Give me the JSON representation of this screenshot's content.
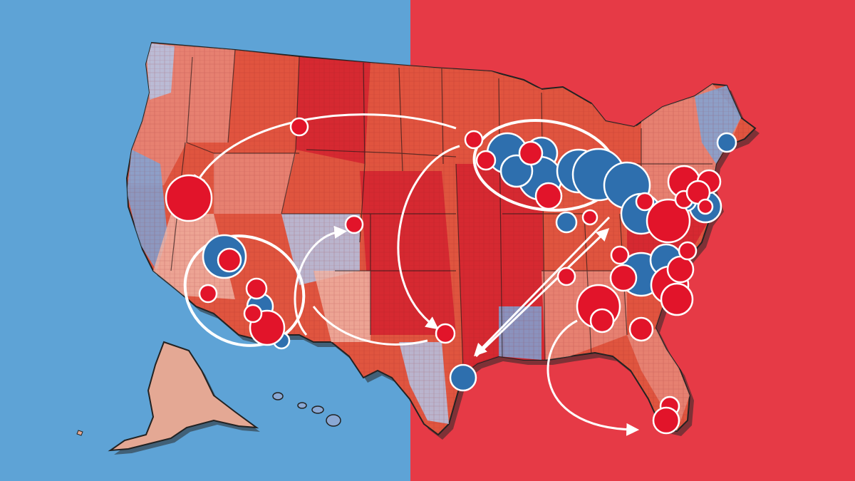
{
  "colors": {
    "panel_left": "#5ea3d6",
    "panel_right": "#e63a46",
    "land_dark": "#d3222f",
    "land_mid": "#e0553f",
    "land_light": "#e7897a",
    "land_pale": "#eeb3a3",
    "land_blue": "#7ea4d6",
    "land_blue_light": "#b3c6e6",
    "alaska": "#e4a894",
    "bubble_red": "#e2142a",
    "bubble_blue": "#2e6fae",
    "stroke_white": "#ffffff",
    "shadow": "#2a2a2a"
  },
  "map": {
    "description_visible_text": "",
    "legend": [],
    "bubble_party_colors": [
      "red",
      "blue"
    ],
    "arrow_count": 7,
    "cluster_ellipse_count": 2
  }
}
